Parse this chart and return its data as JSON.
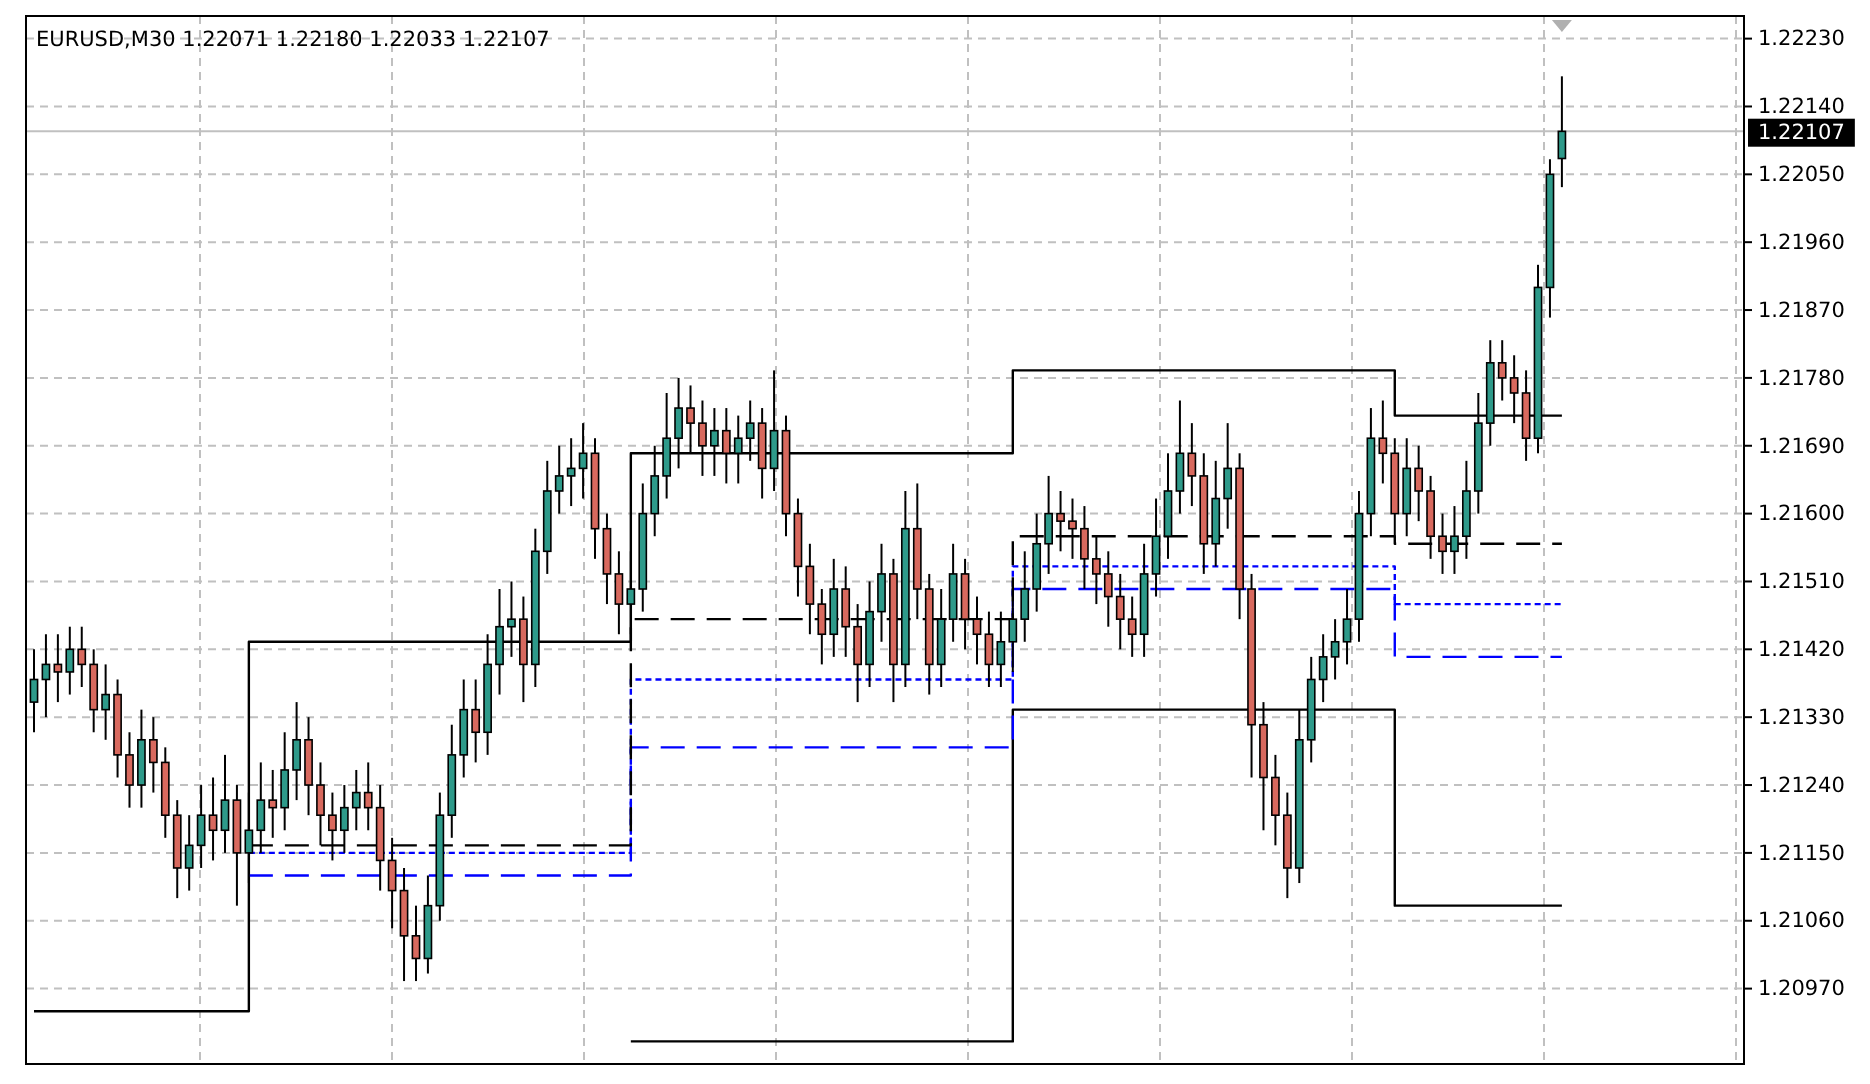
{
  "chart_data": {
    "type": "candlestick",
    "title": "EURUSD,M30  1.22071 1.22180 1.22033 1.22107",
    "categories": [
      null,
      null,
      null,
      null,
      null,
      null,
      null,
      null,
      null,
      null,
      null,
      null,
      null,
      null,
      null,
      null,
      null,
      null,
      null,
      null,
      null,
      null,
      null,
      null,
      null,
      null,
      null,
      null,
      null,
      null,
      null,
      null,
      null,
      null,
      null,
      null,
      null,
      null,
      null,
      null,
      null,
      null,
      null,
      null,
      null,
      null,
      null,
      null,
      null,
      null,
      null,
      null,
      null,
      null,
      null,
      null,
      null,
      null,
      null,
      null,
      null,
      null,
      null,
      null,
      null,
      null,
      null,
      null,
      null,
      null,
      null,
      null,
      null,
      null,
      null,
      null,
      null,
      null,
      null,
      null,
      null,
      null,
      null,
      null,
      null,
      null,
      null,
      null,
      null,
      null,
      null,
      null,
      null,
      null,
      null,
      null,
      null,
      null,
      null,
      null,
      null,
      null,
      null,
      null,
      null,
      null,
      null,
      null,
      null,
      null,
      null,
      null,
      null,
      null,
      null,
      null,
      null,
      null,
      null,
      null,
      null,
      null,
      null,
      null,
      null,
      null,
      null,
      null,
      null
    ],
    "ohlc": [
      [
        1.2135,
        1.2142,
        1.2131,
        1.2138
      ],
      [
        1.2138,
        1.2144,
        1.2133,
        1.214
      ],
      [
        1.214,
        1.2144,
        1.2135,
        1.2139
      ],
      [
        1.2139,
        1.2145,
        1.2136,
        1.2142
      ],
      [
        1.2142,
        1.2145,
        1.2137,
        1.214
      ],
      [
        1.214,
        1.2142,
        1.2131,
        1.2134
      ],
      [
        1.2134,
        1.214,
        1.213,
        1.2136
      ],
      [
        1.2136,
        1.2138,
        1.2125,
        1.2128
      ],
      [
        1.2128,
        1.2131,
        1.2121,
        1.2124
      ],
      [
        1.2124,
        1.2134,
        1.2121,
        1.213
      ],
      [
        1.213,
        1.2133,
        1.2123,
        1.2127
      ],
      [
        1.2127,
        1.2129,
        1.2117,
        1.212
      ],
      [
        1.212,
        1.2122,
        1.2109,
        1.2113
      ],
      [
        1.2113,
        1.212,
        1.211,
        1.2116
      ],
      [
        1.2116,
        1.2124,
        1.2113,
        1.212
      ],
      [
        1.212,
        1.2125,
        1.2114,
        1.2118
      ],
      [
        1.2118,
        1.2128,
        1.2115,
        1.2122
      ],
      [
        1.2122,
        1.2124,
        1.2108,
        1.2115
      ],
      [
        1.2115,
        1.2123,
        1.2111,
        1.2118
      ],
      [
        1.2118,
        1.2127,
        1.2115,
        1.2122
      ],
      [
        1.2122,
        1.2126,
        1.2117,
        1.2121
      ],
      [
        1.2121,
        1.2131,
        1.2118,
        1.2126
      ],
      [
        1.2126,
        1.2135,
        1.2122,
        1.213
      ],
      [
        1.213,
        1.2133,
        1.212,
        1.2124
      ],
      [
        1.2124,
        1.2127,
        1.2116,
        1.212
      ],
      [
        1.212,
        1.2123,
        1.2114,
        1.2118
      ],
      [
        1.2118,
        1.2124,
        1.2115,
        1.2121
      ],
      [
        1.2121,
        1.2126,
        1.2118,
        1.2123
      ],
      [
        1.2123,
        1.2127,
        1.2118,
        1.2121
      ],
      [
        1.2121,
        1.2124,
        1.211,
        1.2114
      ],
      [
        1.2114,
        1.2117,
        1.2105,
        1.211
      ],
      [
        1.211,
        1.2113,
        1.2098,
        1.2104
      ],
      [
        1.2104,
        1.2108,
        1.2098,
        1.2101
      ],
      [
        1.2101,
        1.2112,
        1.2099,
        1.2108
      ],
      [
        1.2108,
        1.2123,
        1.2106,
        1.212
      ],
      [
        1.212,
        1.2132,
        1.2117,
        1.2128
      ],
      [
        1.2128,
        1.2138,
        1.2125,
        1.2134
      ],
      [
        1.2134,
        1.2138,
        1.2127,
        1.2131
      ],
      [
        1.2131,
        1.2144,
        1.2128,
        1.214
      ],
      [
        1.214,
        1.215,
        1.2136,
        1.2145
      ],
      [
        1.2145,
        1.2151,
        1.2141,
        1.2146
      ],
      [
        1.2146,
        1.2149,
        1.2135,
        1.214
      ],
      [
        1.214,
        1.2158,
        1.2137,
        1.2155
      ],
      [
        1.2155,
        1.2167,
        1.2152,
        1.2163
      ],
      [
        1.2163,
        1.2169,
        1.216,
        1.2165
      ],
      [
        1.2165,
        1.217,
        1.2161,
        1.2166
      ],
      [
        1.2166,
        1.2172,
        1.2162,
        1.2168
      ],
      [
        1.2168,
        1.217,
        1.2154,
        1.2158
      ],
      [
        1.2158,
        1.216,
        1.2148,
        1.2152
      ],
      [
        1.2152,
        1.2155,
        1.2144,
        1.2148
      ],
      [
        1.2148,
        1.2155,
        1.2144,
        1.215
      ],
      [
        1.215,
        1.2164,
        1.2147,
        1.216
      ],
      [
        1.216,
        1.2169,
        1.2157,
        1.2165
      ],
      [
        1.2165,
        1.2176,
        1.2162,
        1.217
      ],
      [
        1.217,
        1.2178,
        1.2166,
        1.2174
      ],
      [
        1.2174,
        1.2177,
        1.2168,
        1.2172
      ],
      [
        1.2172,
        1.2175,
        1.2165,
        1.2169
      ],
      [
        1.2169,
        1.2174,
        1.2165,
        1.2171
      ],
      [
        1.2171,
        1.2174,
        1.2164,
        1.2168
      ],
      [
        1.2168,
        1.2173,
        1.2164,
        1.217
      ],
      [
        1.217,
        1.2175,
        1.2167,
        1.2172
      ],
      [
        1.2172,
        1.2174,
        1.2162,
        1.2166
      ],
      [
        1.2166,
        1.2179,
        1.2163,
        1.2171
      ],
      [
        1.2171,
        1.2173,
        1.2157,
        1.216
      ],
      [
        1.216,
        1.2162,
        1.2149,
        1.2153
      ],
      [
        1.2153,
        1.2156,
        1.2144,
        1.2148
      ],
      [
        1.2148,
        1.215,
        1.214,
        1.2144
      ],
      [
        1.2144,
        1.2154,
        1.2141,
        1.215
      ],
      [
        1.215,
        1.2153,
        1.2141,
        1.2145
      ],
      [
        1.2145,
        1.2148,
        1.2135,
        1.214
      ],
      [
        1.214,
        1.2151,
        1.2137,
        1.2147
      ],
      [
        1.2147,
        1.2156,
        1.2143,
        1.2152
      ],
      [
        1.2152,
        1.2154,
        1.2135,
        1.214
      ],
      [
        1.214,
        1.2163,
        1.2137,
        1.2158
      ],
      [
        1.2158,
        1.2164,
        1.2146,
        1.215
      ],
      [
        1.215,
        1.2152,
        1.2136,
        1.214
      ],
      [
        1.214,
        1.215,
        1.2137,
        1.2146
      ],
      [
        1.2146,
        1.2156,
        1.2143,
        1.2152
      ],
      [
        1.2152,
        1.2154,
        1.2142,
        1.2146
      ],
      [
        1.2146,
        1.2149,
        1.214,
        1.2144
      ],
      [
        1.2144,
        1.2147,
        1.2137,
        1.214
      ],
      [
        1.214,
        1.2147,
        1.2137,
        1.2143
      ],
      [
        1.2143,
        1.215,
        1.2139,
        1.2146
      ],
      [
        1.2146,
        1.2155,
        1.2143,
        1.215
      ],
      [
        1.215,
        1.216,
        1.2147,
        1.2156
      ],
      [
        1.2156,
        1.2165,
        1.2152,
        1.216
      ],
      [
        1.216,
        1.2163,
        1.2155,
        1.2159
      ],
      [
        1.2159,
        1.2162,
        1.2154,
        1.2158
      ],
      [
        1.2158,
        1.2161,
        1.215,
        1.2154
      ],
      [
        1.2154,
        1.2157,
        1.2148,
        1.2152
      ],
      [
        1.2152,
        1.2155,
        1.2145,
        1.2149
      ],
      [
        1.2149,
        1.2152,
        1.2142,
        1.2146
      ],
      [
        1.2146,
        1.2149,
        1.2141,
        1.2144
      ],
      [
        1.2144,
        1.2156,
        1.2141,
        1.2152
      ],
      [
        1.2152,
        1.2162,
        1.2149,
        1.2157
      ],
      [
        1.2157,
        1.2168,
        1.2154,
        1.2163
      ],
      [
        1.2163,
        1.2175,
        1.216,
        1.2168
      ],
      [
        1.2168,
        1.2172,
        1.2161,
        1.2165
      ],
      [
        1.2165,
        1.2168,
        1.2152,
        1.2156
      ],
      [
        1.2156,
        1.2167,
        1.2153,
        1.2162
      ],
      [
        1.2162,
        1.2172,
        1.2158,
        1.2166
      ],
      [
        1.2166,
        1.2168,
        1.2146,
        1.215
      ],
      [
        1.215,
        1.2152,
        1.2125,
        1.2132
      ],
      [
        1.2132,
        1.2135,
        1.2118,
        1.2125
      ],
      [
        1.2125,
        1.2128,
        1.2116,
        1.212
      ],
      [
        1.212,
        1.2123,
        1.2109,
        1.2113
      ],
      [
        1.2113,
        1.2134,
        1.2111,
        1.213
      ],
      [
        1.213,
        1.2141,
        1.2127,
        1.2138
      ],
      [
        1.2138,
        1.2144,
        1.2135,
        1.2141
      ],
      [
        1.2141,
        1.2146,
        1.2138,
        1.2143
      ],
      [
        1.2143,
        1.215,
        1.214,
        1.2146
      ],
      [
        1.2146,
        1.2163,
        1.2143,
        1.216
      ],
      [
        1.216,
        1.2174,
        1.2157,
        1.217
      ],
      [
        1.217,
        1.2175,
        1.2164,
        1.2168
      ],
      [
        1.2168,
        1.217,
        1.2157,
        1.216
      ],
      [
        1.216,
        1.217,
        1.2157,
        1.2166
      ],
      [
        1.2166,
        1.2169,
        1.2159,
        1.2163
      ],
      [
        1.2163,
        1.2165,
        1.2154,
        1.2157
      ],
      [
        1.2157,
        1.216,
        1.2152,
        1.2155
      ],
      [
        1.2155,
        1.2161,
        1.2152,
        1.2157
      ],
      [
        1.2157,
        1.2167,
        1.2154,
        1.2163
      ],
      [
        1.2163,
        1.2176,
        1.216,
        1.2172
      ],
      [
        1.2172,
        1.2183,
        1.2169,
        1.218
      ],
      [
        1.218,
        1.2183,
        1.2175,
        1.2178
      ],
      [
        1.2178,
        1.2181,
        1.2172,
        1.2176
      ],
      [
        1.2176,
        1.2179,
        1.2167,
        1.217
      ],
      [
        1.217,
        1.2193,
        1.2168,
        1.219
      ],
      [
        1.219,
        1.2207,
        1.2186,
        1.2205
      ],
      [
        1.22071,
        1.2218,
        1.22033,
        1.22107
      ]
    ],
    "colors": [
      "#2e9a8a",
      "#2e9a8a",
      "#d8695e",
      "#2e9a8a",
      "#d8695e",
      "#d8695e",
      "#2e9a8a",
      "#d8695e",
      "#d8695e",
      "#2e9a8a",
      "#d8695e",
      "#d8695e",
      "#d8695e",
      "#2e9a8a",
      "#2e9a8a",
      "#d8695e",
      "#2e9a8a",
      "#d8695e",
      "#2e9a8a",
      "#2e9a8a",
      "#d8695e",
      "#2e9a8a",
      "#2e9a8a",
      "#d8695e",
      "#d8695e",
      "#d8695e",
      "#2e9a8a",
      "#2e9a8a",
      "#d8695e",
      "#d8695e",
      "#d8695e",
      "#d8695e",
      "#d8695e",
      "#2e9a8a",
      "#2e9a8a",
      "#2e9a8a",
      "#2e9a8a",
      "#d8695e",
      "#2e9a8a",
      "#2e9a8a",
      "#2e9a8a",
      "#d8695e",
      "#2e9a8a",
      "#2e9a8a",
      "#2e9a8a",
      "#2e9a8a",
      "#2e9a8a",
      "#d8695e",
      "#d8695e",
      "#d8695e",
      "#2e9a8a",
      "#2e9a8a",
      "#2e9a8a",
      "#2e9a8a",
      "#2e9a8a",
      "#d8695e",
      "#d8695e",
      "#2e9a8a",
      "#d8695e",
      "#2e9a8a",
      "#2e9a8a",
      "#d8695e",
      "#2e9a8a",
      "#d8695e",
      "#d8695e",
      "#d8695e",
      "#d8695e",
      "#2e9a8a",
      "#d8695e",
      "#d8695e",
      "#2e9a8a",
      "#2e9a8a",
      "#d8695e",
      "#2e9a8a",
      "#d8695e",
      "#d8695e",
      "#2e9a8a",
      "#2e9a8a",
      "#d8695e",
      "#d8695e",
      "#d8695e",
      "#2e9a8a",
      "#2e9a8a",
      "#2e9a8a",
      "#2e9a8a",
      "#2e9a8a",
      "#d8695e",
      "#d8695e",
      "#d8695e",
      "#d8695e",
      "#d8695e",
      "#d8695e",
      "#d8695e",
      "#2e9a8a",
      "#2e9a8a",
      "#2e9a8a",
      "#2e9a8a",
      "#d8695e",
      "#d8695e",
      "#2e9a8a",
      "#2e9a8a",
      "#d8695e",
      "#d8695e",
      "#d8695e",
      "#d8695e",
      "#d8695e",
      "#2e9a8a",
      "#2e9a8a",
      "#2e9a8a",
      "#2e9a8a",
      "#2e9a8a",
      "#2e9a8a",
      "#2e9a8a",
      "#d8695e",
      "#d8695e",
      "#2e9a8a",
      "#d8695e",
      "#d8695e",
      "#d8695e",
      "#2e9a8a",
      "#2e9a8a",
      "#2e9a8a",
      "#2e9a8a",
      "#d8695e",
      "#d8695e",
      "#d8695e",
      "#2e9a8a",
      "#2e9a8a",
      "#2e9a8a"
    ],
    "series": [
      {
        "type": "step",
        "color": "#000000",
        "line_style": "solid",
        "values": [
          1.2094,
          1.2094,
          1.2094,
          1.2094,
          1.2094,
          1.2094,
          1.2094,
          1.2094,
          1.2094,
          1.2094,
          1.2094,
          1.2094,
          1.2094,
          1.2094,
          1.2094,
          1.2094,
          1.2094,
          1.2094,
          1.2143,
          1.2143,
          1.2143,
          1.2143,
          1.2143,
          1.2143,
          1.2143,
          1.2143,
          1.2143,
          1.2143,
          1.2143,
          1.2143,
          1.2143,
          1.2143,
          1.2143,
          1.2143,
          1.2143,
          1.2143,
          1.2143,
          1.2143,
          1.2143,
          1.2143,
          1.2143,
          1.2143,
          1.2143,
          1.2143,
          1.2143,
          1.2143,
          1.2143,
          1.2143,
          1.2143,
          1.2143,
          1.2168,
          1.2168,
          1.2168,
          1.2168,
          1.2168,
          1.2168,
          1.2168,
          1.2168,
          1.2168,
          1.2168,
          1.2168,
          1.2168,
          1.2168,
          1.2168,
          1.2168,
          1.2168,
          1.2168,
          1.2168,
          1.2168,
          1.2168,
          1.2168,
          1.2168,
          1.2168,
          1.2168,
          1.2168,
          1.2168,
          1.2168,
          1.2168,
          1.2168,
          1.2168,
          1.2168,
          1.2168,
          1.2179,
          1.2179,
          1.2179,
          1.2179,
          1.2179,
          1.2179,
          1.2179,
          1.2179,
          1.2179,
          1.2179,
          1.2179,
          1.2179,
          1.2179,
          1.2179,
          1.2179,
          1.2179,
          1.2179,
          1.2179,
          1.2179,
          1.2179,
          1.2179,
          1.2179,
          1.2179,
          1.2179,
          1.2179,
          1.2179,
          1.2179,
          1.2179,
          1.2179,
          1.2179,
          1.2179,
          1.2179,
          1.2173,
          1.2173,
          1.2173,
          1.2173,
          1.2173,
          1.2173,
          1.2173,
          1.2173,
          1.2173,
          1.2173,
          1.2173,
          1.2173,
          1.2173,
          1.2173,
          1.2173
        ]
      },
      {
        "type": "step",
        "color": "#000000",
        "line_style": "solid",
        "values": [
          null,
          null,
          null,
          null,
          null,
          null,
          null,
          null,
          null,
          null,
          null,
          null,
          null,
          null,
          null,
          null,
          null,
          null,
          null,
          null,
          null,
          null,
          null,
          null,
          null,
          null,
          null,
          null,
          null,
          null,
          null,
          null,
          null,
          null,
          null,
          null,
          null,
          null,
          null,
          null,
          null,
          null,
          null,
          null,
          null,
          null,
          null,
          null,
          null,
          null,
          1.209,
          1.209,
          1.209,
          1.209,
          1.209,
          1.209,
          1.209,
          1.209,
          1.209,
          1.209,
          1.209,
          1.209,
          1.209,
          1.209,
          1.209,
          1.209,
          1.209,
          1.209,
          1.209,
          1.209,
          1.209,
          1.209,
          1.209,
          1.209,
          1.209,
          1.209,
          1.209,
          1.209,
          1.209,
          1.209,
          1.209,
          1.209,
          1.2134,
          1.2134,
          1.2134,
          1.2134,
          1.2134,
          1.2134,
          1.2134,
          1.2134,
          1.2134,
          1.2134,
          1.2134,
          1.2134,
          1.2134,
          1.2134,
          1.2134,
          1.2134,
          1.2134,
          1.2134,
          1.2134,
          1.2134,
          1.2134,
          1.2134,
          1.2134,
          1.2134,
          1.2134,
          1.2134,
          1.2134,
          1.2134,
          1.2134,
          1.2134,
          1.2134,
          1.2134,
          1.2108,
          1.2108,
          1.2108,
          1.2108,
          1.2108,
          1.2108,
          1.2108,
          1.2108,
          1.2108,
          1.2108,
          1.2108,
          1.2108,
          1.2108,
          1.2108,
          1.2108
        ]
      },
      {
        "type": "step",
        "color": "#0000ff",
        "line_style": "dashed",
        "values": [
          null,
          null,
          null,
          null,
          null,
          null,
          null,
          null,
          null,
          null,
          null,
          null,
          null,
          null,
          null,
          null,
          null,
          null,
          1.2112,
          1.2112,
          1.2112,
          1.2112,
          1.2112,
          1.2112,
          1.2112,
          1.2112,
          1.2112,
          1.2112,
          1.2112,
          1.2112,
          1.2112,
          1.2112,
          1.2112,
          1.2112,
          1.2112,
          1.2112,
          1.2112,
          1.2112,
          1.2112,
          1.2112,
          1.2112,
          1.2112,
          1.2112,
          1.2112,
          1.2112,
          1.2112,
          1.2112,
          1.2112,
          1.2112,
          1.2112,
          1.2129,
          1.2129,
          1.2129,
          1.2129,
          1.2129,
          1.2129,
          1.2129,
          1.2129,
          1.2129,
          1.2129,
          1.2129,
          1.2129,
          1.2129,
          1.2129,
          1.2129,
          1.2129,
          1.2129,
          1.2129,
          1.2129,
          1.2129,
          1.2129,
          1.2129,
          1.2129,
          1.2129,
          1.2129,
          1.2129,
          1.2129,
          1.2129,
          1.2129,
          1.2129,
          1.2129,
          1.2129,
          1.215,
          1.215,
          1.215,
          1.215,
          1.215,
          1.215,
          1.215,
          1.215,
          1.215,
          1.215,
          1.215,
          1.215,
          1.215,
          1.215,
          1.215,
          1.215,
          1.215,
          1.215,
          1.215,
          1.215,
          1.215,
          1.215,
          1.215,
          1.215,
          1.215,
          1.215,
          1.215,
          1.215,
          1.215,
          1.215,
          1.215,
          1.215,
          1.2141,
          1.2141,
          1.2141,
          1.2141,
          1.2141,
          1.2141,
          1.2141,
          1.2141,
          1.2141,
          1.2141,
          1.2141,
          1.2141,
          1.2141,
          1.2141,
          1.2141
        ]
      },
      {
        "type": "step",
        "color": "#0000ff",
        "line_style": "dotted",
        "values": [
          null,
          null,
          null,
          null,
          null,
          null,
          null,
          null,
          null,
          null,
          null,
          null,
          null,
          null,
          null,
          null,
          null,
          null,
          1.2115,
          1.2115,
          1.2115,
          1.2115,
          1.2115,
          1.2115,
          1.2115,
          1.2115,
          1.2115,
          1.2115,
          1.2115,
          1.2115,
          1.2115,
          1.2115,
          1.2115,
          1.2115,
          1.2115,
          1.2115,
          1.2115,
          1.2115,
          1.2115,
          1.2115,
          1.2115,
          1.2115,
          1.2115,
          1.2115,
          1.2115,
          1.2115,
          1.2115,
          1.2115,
          1.2115,
          1.2115,
          1.2138,
          1.2138,
          1.2138,
          1.2138,
          1.2138,
          1.2138,
          1.2138,
          1.2138,
          1.2138,
          1.2138,
          1.2138,
          1.2138,
          1.2138,
          1.2138,
          1.2138,
          1.2138,
          1.2138,
          1.2138,
          1.2138,
          1.2138,
          1.2138,
          1.2138,
          1.2138,
          1.2138,
          1.2138,
          1.2138,
          1.2138,
          1.2138,
          1.2138,
          1.2138,
          1.2138,
          1.2138,
          1.2153,
          1.2153,
          1.2153,
          1.2153,
          1.2153,
          1.2153,
          1.2153,
          1.2153,
          1.2153,
          1.2153,
          1.2153,
          1.2153,
          1.2153,
          1.2153,
          1.2153,
          1.2153,
          1.2153,
          1.2153,
          1.2153,
          1.2153,
          1.2153,
          1.2153,
          1.2153,
          1.2153,
          1.2153,
          1.2153,
          1.2153,
          1.2153,
          1.2153,
          1.2153,
          1.2153,
          1.2153,
          1.2148,
          1.2148,
          1.2148,
          1.2148,
          1.2148,
          1.2148,
          1.2148,
          1.2148,
          1.2148,
          1.2148,
          1.2148,
          1.2148,
          1.2148,
          1.2148,
          1.2148
        ]
      },
      {
        "type": "step",
        "color": "#000000",
        "line_style": "dashed",
        "values": [
          null,
          null,
          null,
          null,
          null,
          null,
          null,
          null,
          null,
          null,
          null,
          null,
          null,
          null,
          null,
          null,
          null,
          null,
          1.2116,
          1.2116,
          1.2116,
          1.2116,
          1.2116,
          1.2116,
          1.2116,
          1.2116,
          1.2116,
          1.2116,
          1.2116,
          1.2116,
          1.2116,
          1.2116,
          1.2116,
          1.2116,
          1.2116,
          1.2116,
          1.2116,
          1.2116,
          1.2116,
          1.2116,
          1.2116,
          1.2116,
          1.2116,
          1.2116,
          1.2116,
          1.2116,
          1.2116,
          1.2116,
          1.2116,
          1.2116,
          1.2146,
          1.2146,
          1.2146,
          1.2146,
          1.2146,
          1.2146,
          1.2146,
          1.2146,
          1.2146,
          1.2146,
          1.2146,
          1.2146,
          1.2146,
          1.2146,
          1.2146,
          1.2146,
          1.2146,
          1.2146,
          1.2146,
          1.2146,
          1.2146,
          1.2146,
          1.2146,
          1.2146,
          1.2146,
          1.2146,
          1.2146,
          1.2146,
          1.2146,
          1.2146,
          1.2146,
          1.2146,
          1.2157,
          1.2157,
          1.2157,
          1.2157,
          1.2157,
          1.2157,
          1.2157,
          1.2157,
          1.2157,
          1.2157,
          1.2157,
          1.2157,
          1.2157,
          1.2157,
          1.2157,
          1.2157,
          1.2157,
          1.2157,
          1.2157,
          1.2157,
          1.2157,
          1.2157,
          1.2157,
          1.2157,
          1.2157,
          1.2157,
          1.2157,
          1.2157,
          1.2157,
          1.2157,
          1.2157,
          1.2157,
          1.2156,
          1.2156,
          1.2156,
          1.2156,
          1.2156,
          1.2156,
          1.2156,
          1.2156,
          1.2156,
          1.2156,
          1.2156,
          1.2156,
          1.2156,
          1.2156,
          1.2156
        ]
      }
    ],
    "ylim": [
      1.2087,
      1.2226
    ],
    "yticks": [
      {
        "value": 1.2097,
        "label": "1.20970"
      },
      {
        "value": 1.2106,
        "label": "1.21060"
      },
      {
        "value": 1.2115,
        "label": "1.21150"
      },
      {
        "value": 1.2124,
        "label": "1.21240"
      },
      {
        "value": 1.2133,
        "label": "1.21330"
      },
      {
        "value": 1.2142,
        "label": "1.21420"
      },
      {
        "value": 1.2151,
        "label": "1.21510"
      },
      {
        "value": 1.216,
        "label": "1.21600"
      },
      {
        "value": 1.2169,
        "label": "1.21690"
      },
      {
        "value": 1.2178,
        "label": "1.21780"
      },
      {
        "value": 1.2187,
        "label": "1.21870"
      },
      {
        "value": 1.2196,
        "label": "1.21960"
      },
      {
        "value": 1.2205,
        "label": "1.22050"
      },
      {
        "value": 1.2214,
        "label": "1.22140"
      },
      {
        "value": 1.2223,
        "label": "1.22230"
      }
    ],
    "grid": true,
    "ref_lines": [
      {
        "axis": "y",
        "value": 1.22107,
        "label": "1.22107",
        "color": "#c0c0c0"
      }
    ]
  }
}
